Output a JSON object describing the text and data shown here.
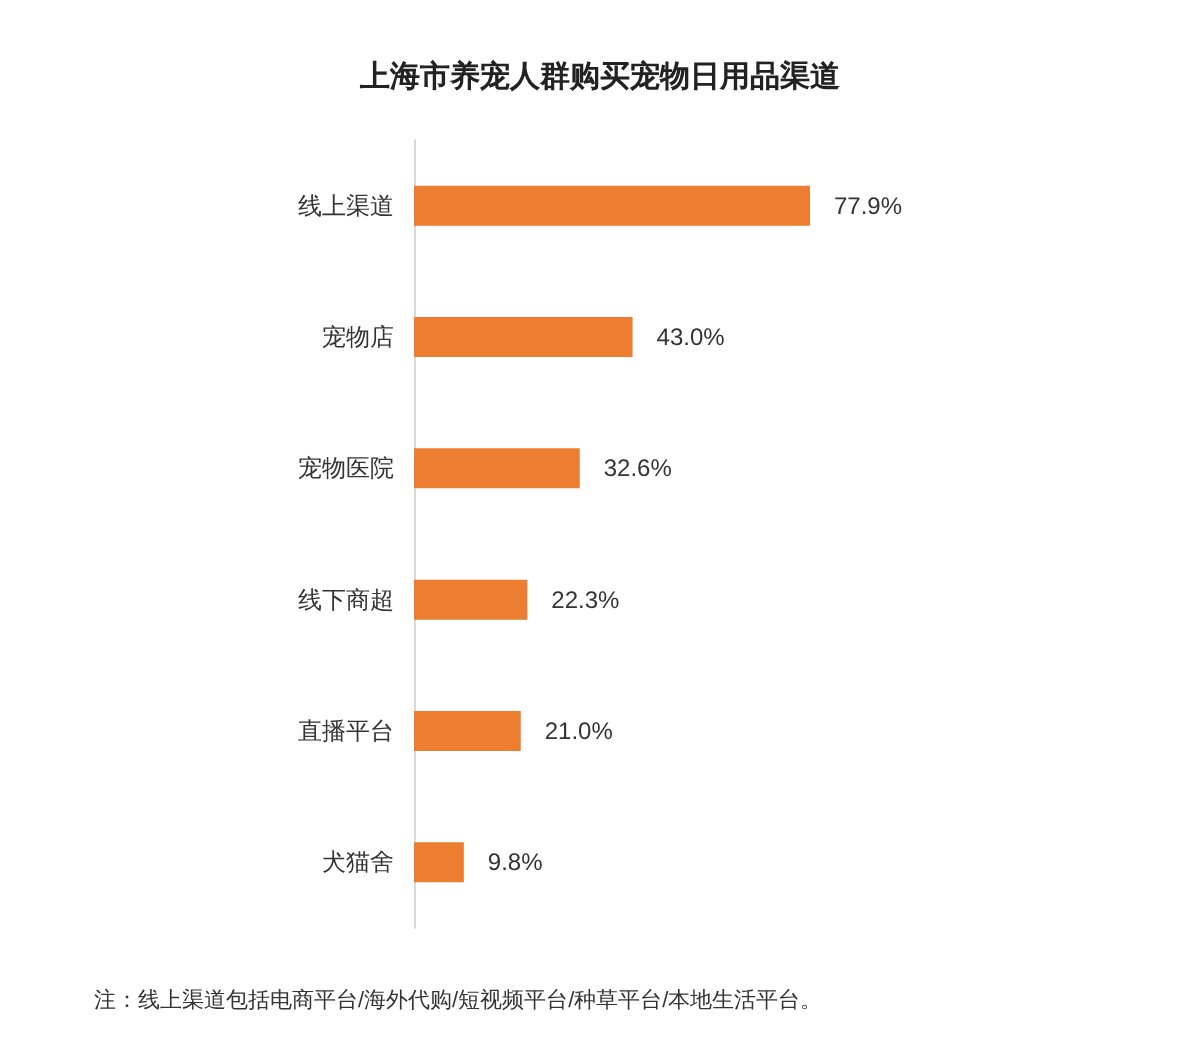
{
  "chart_data": {
    "type": "bar",
    "orientation": "horizontal",
    "title": "上海市养宠人群购买宠物日用品渠道",
    "categories": [
      "线上渠道",
      "宠物店",
      "宠物医院",
      "线下商超",
      "直播平台",
      "犬猫舍"
    ],
    "values": [
      77.9,
      43.0,
      32.6,
      22.3,
      21.0,
      9.8
    ],
    "value_labels": [
      "77.9%",
      "43.0%",
      "32.6%",
      "22.3%",
      "21.0%",
      "9.8%"
    ],
    "color": "#ed7d31",
    "annotations": [
      "注：线上渠道包括电商平台/海外代购/短视频平台/种草平台/本地生活平台。"
    ]
  }
}
